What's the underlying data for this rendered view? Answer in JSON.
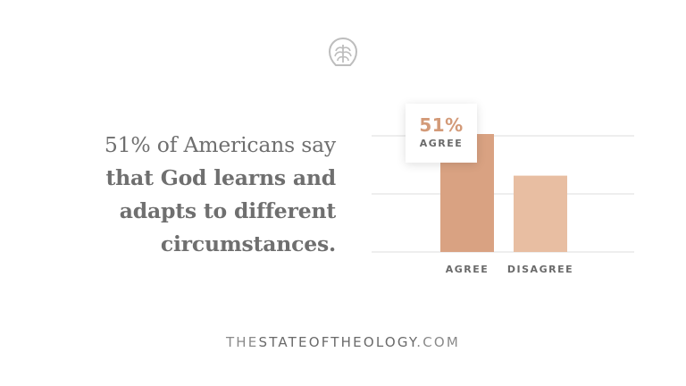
{
  "headline": {
    "lead": "51% of Americans say",
    "bold_lines": [
      "that God learns and",
      "adapts to different",
      "circumstances."
    ]
  },
  "callout": {
    "percent": "51%",
    "label": "AGREE"
  },
  "footer": {
    "pre": "THE",
    "strong": "STATEOFTHEOLOGY",
    "post": ".COM"
  },
  "logo_icon": "ligonier-tree-logo",
  "colors": {
    "agree": "#d9a282",
    "disagree": "#e8bea2",
    "grid": "#dcdcdc",
    "text": "#6f6f6f"
  },
  "chart_data": {
    "type": "bar",
    "categories": [
      "AGREE",
      "DISAGREE"
    ],
    "values": [
      51,
      33
    ],
    "ylim": [
      0,
      60
    ],
    "grid": true,
    "data_labels": [
      {
        "category": "AGREE",
        "text": "51%"
      }
    ]
  }
}
